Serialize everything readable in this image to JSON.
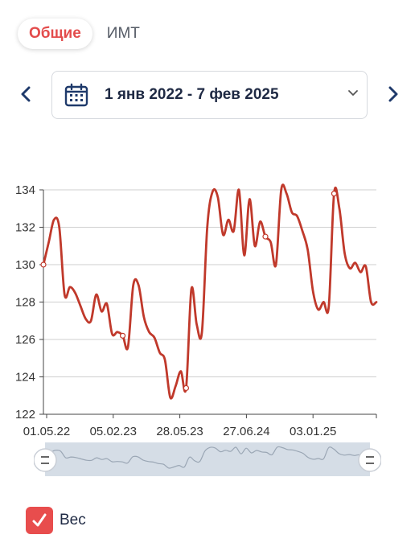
{
  "tabs": [
    {
      "label": "Общие",
      "active": true
    },
    {
      "label": "ИМТ",
      "active": false
    }
  ],
  "date_range": {
    "label": "1 янв 2022 - 7 фев 2025"
  },
  "icons": {
    "prev": "chevron-left-icon",
    "next": "chevron-right-icon",
    "calendar": "calendar-icon",
    "dropdown": "chevron-down-icon",
    "check": "checkmark-icon"
  },
  "colors": {
    "accent": "#e34b4b",
    "line": "#c0392b",
    "nav": "#1f3a6b",
    "brush_fill": "#d5dde6"
  },
  "legend": {
    "label": "Вес",
    "checked": true
  },
  "chart_data": {
    "type": "line",
    "title": "",
    "xlabel": "",
    "ylabel": "",
    "ylim": [
      122,
      134
    ],
    "yticks": [
      "122",
      "124",
      "126",
      "128",
      "130",
      "132",
      "134"
    ],
    "xticks": [
      "01.05.22",
      "05.02.23",
      "28.05.23",
      "27.06.24",
      "03.01.25"
    ],
    "grid": "horizontal",
    "series": [
      {
        "name": "Вес",
        "values": [
          130.0,
          131.2,
          132.4,
          132.0,
          128.4,
          128.8,
          128.5,
          127.8,
          127.1,
          127.0,
          128.4,
          127.5,
          127.9,
          126.3,
          126.4,
          126.2,
          125.6,
          128.9,
          128.9,
          127.2,
          126.4,
          126.1,
          125.3,
          124.9,
          122.9,
          123.5,
          124.3,
          123.4,
          128.7,
          126.8,
          126.4,
          132.0,
          133.9,
          133.6,
          131.6,
          132.4,
          131.8,
          134.0,
          130.5,
          133.5,
          131.0,
          132.3,
          131.5,
          131.2,
          130.0,
          134.0,
          133.8,
          132.8,
          132.6,
          131.8,
          130.8,
          128.6,
          127.6,
          128.0,
          127.8,
          133.8,
          133.0,
          130.6,
          129.8,
          130.1,
          129.6,
          129.9,
          128.0,
          128.0
        ]
      }
    ],
    "marked_points": [
      0,
      15,
      27,
      42,
      55
    ]
  }
}
